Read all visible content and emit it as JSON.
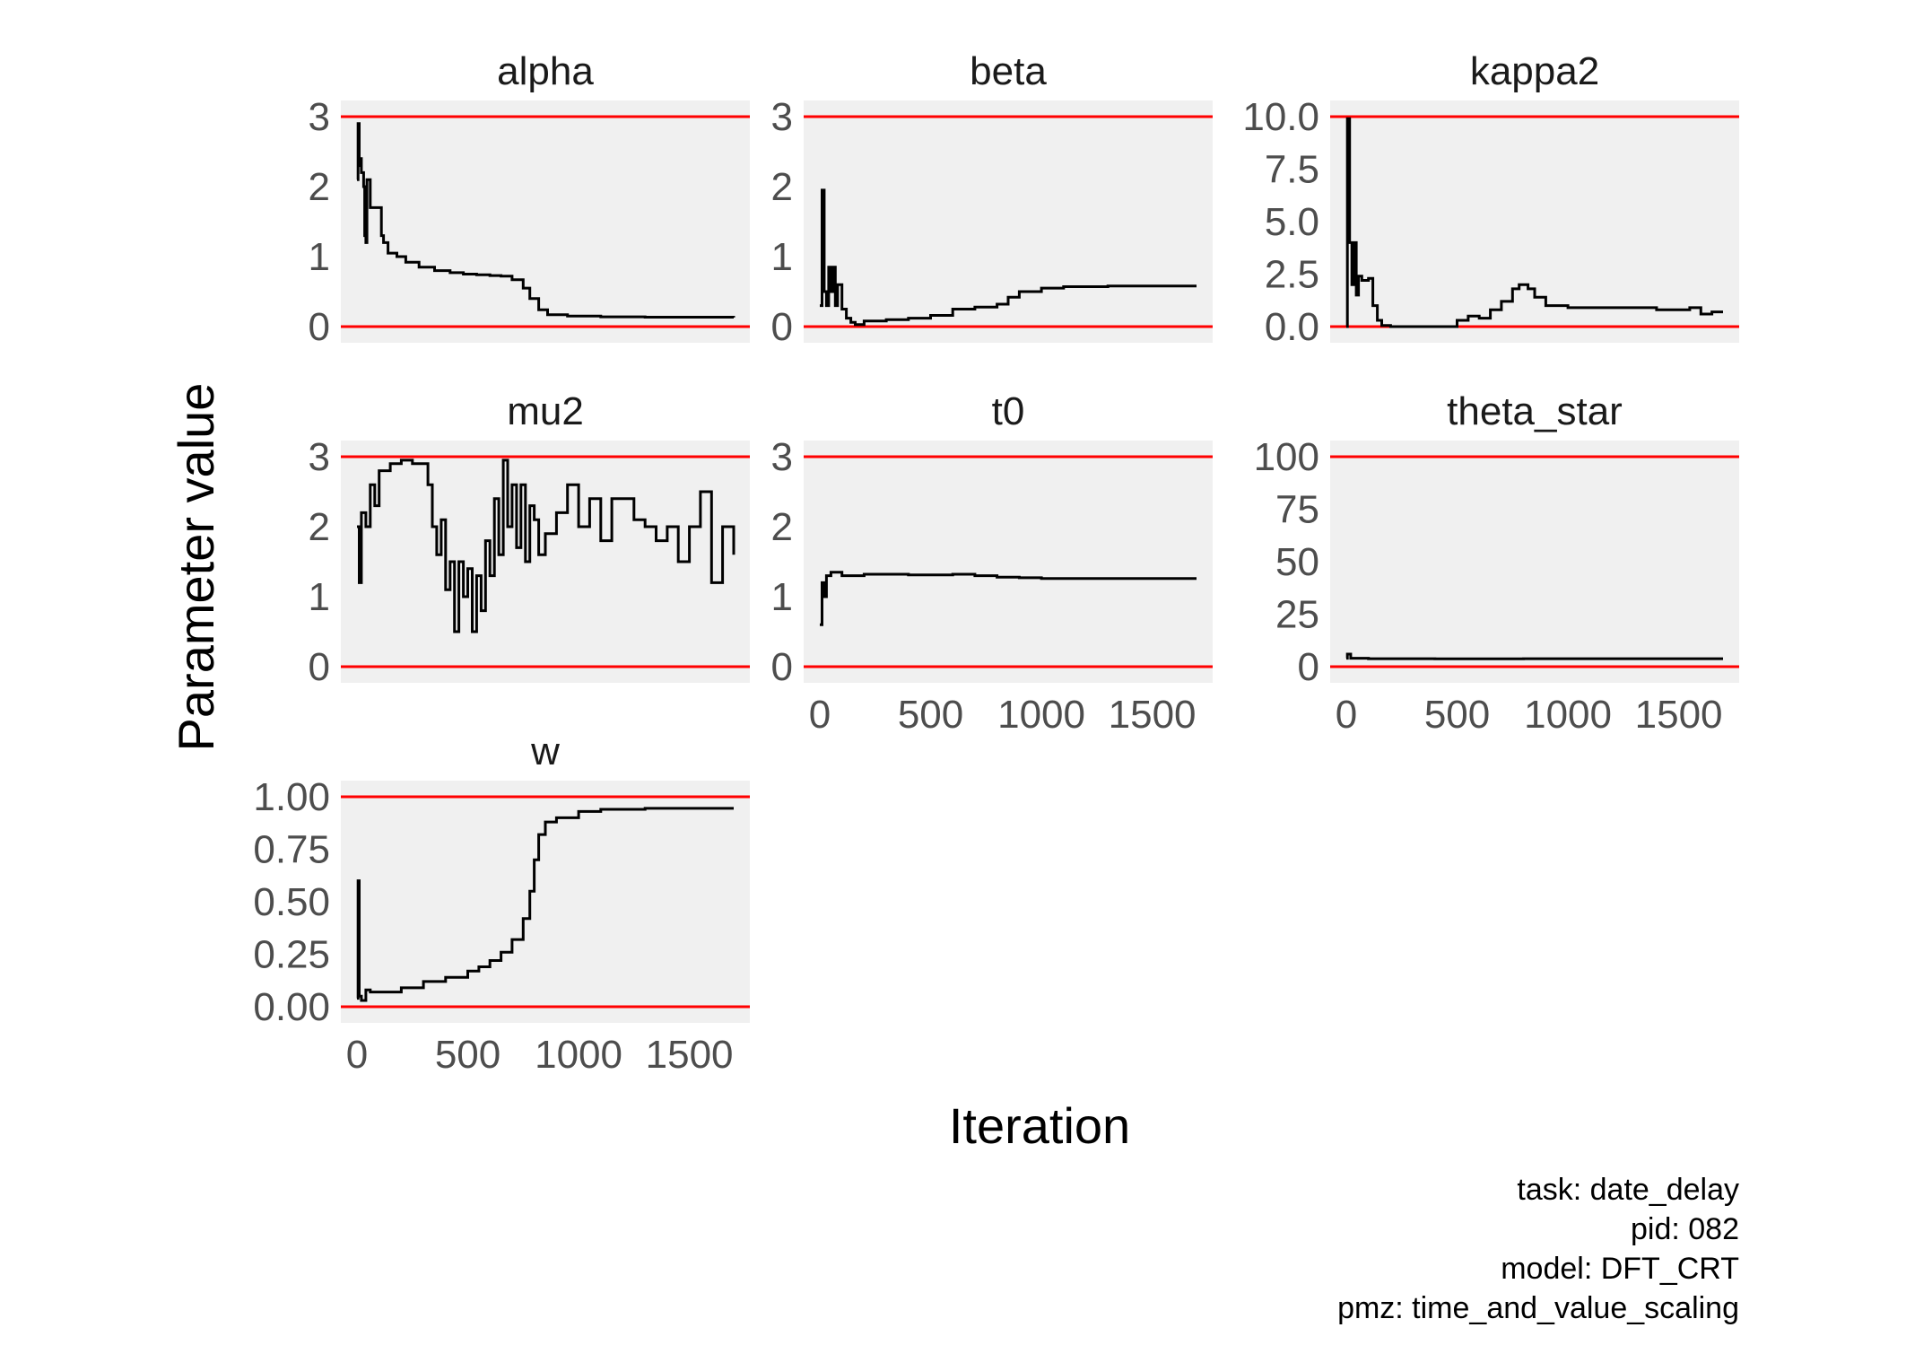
{
  "chart_data": {
    "type": "line",
    "xlabel": "Iteration",
    "ylabel": "Parameter value",
    "x_range": [
      0,
      1700
    ],
    "x_ticks": [
      "0",
      "500",
      "1000",
      "1500"
    ],
    "colors": {
      "panel_bg": "#f0f0f0",
      "trace": "#000000",
      "bound_line": "#ff0000"
    },
    "caption": [
      "task: date_delay",
      "pid: 082",
      "model: DFT_CRT",
      "pmz: time_and_value_scaling"
    ],
    "panels": [
      {
        "name": "alpha",
        "ylim": [
          0,
          3
        ],
        "yticks": [
          "0",
          "1",
          "2",
          "3"
        ],
        "bounds": [
          0,
          3
        ],
        "trace": [
          [
            0,
            2.1
          ],
          [
            5,
            2.9
          ],
          [
            10,
            2.3
          ],
          [
            15,
            2.4
          ],
          [
            20,
            2.2
          ],
          [
            30,
            2.0
          ],
          [
            35,
            1.3
          ],
          [
            40,
            1.2
          ],
          [
            45,
            2.1
          ],
          [
            55,
            2.1
          ],
          [
            60,
            1.7
          ],
          [
            100,
            1.7
          ],
          [
            110,
            1.3
          ],
          [
            120,
            1.2
          ],
          [
            140,
            1.05
          ],
          [
            180,
            1.0
          ],
          [
            220,
            0.92
          ],
          [
            280,
            0.85
          ],
          [
            350,
            0.8
          ],
          [
            420,
            0.77
          ],
          [
            480,
            0.75
          ],
          [
            540,
            0.74
          ],
          [
            600,
            0.73
          ],
          [
            650,
            0.72
          ],
          [
            700,
            0.67
          ],
          [
            750,
            0.55
          ],
          [
            780,
            0.4
          ],
          [
            820,
            0.24
          ],
          [
            860,
            0.17
          ],
          [
            950,
            0.15
          ],
          [
            1100,
            0.14
          ],
          [
            1300,
            0.135
          ],
          [
            1700,
            0.13
          ]
        ]
      },
      {
        "name": "beta",
        "ylim": [
          0,
          3
        ],
        "yticks": [
          "0",
          "1",
          "2",
          "3"
        ],
        "bounds": [
          0,
          3
        ],
        "trace": [
          [
            0,
            0.3
          ],
          [
            10,
            1.95
          ],
          [
            20,
            0.5
          ],
          [
            30,
            0.3
          ],
          [
            40,
            0.85
          ],
          [
            50,
            0.5
          ],
          [
            60,
            0.85
          ],
          [
            70,
            0.3
          ],
          [
            80,
            0.6
          ],
          [
            100,
            0.25
          ],
          [
            120,
            0.12
          ],
          [
            140,
            0.06
          ],
          [
            160,
            0.03
          ],
          [
            200,
            0.08
          ],
          [
            300,
            0.1
          ],
          [
            400,
            0.12
          ],
          [
            500,
            0.16
          ],
          [
            600,
            0.25
          ],
          [
            700,
            0.28
          ],
          [
            800,
            0.32
          ],
          [
            850,
            0.42
          ],
          [
            900,
            0.5
          ],
          [
            1000,
            0.55
          ],
          [
            1100,
            0.57
          ],
          [
            1300,
            0.58
          ],
          [
            1700,
            0.58
          ]
        ]
      },
      {
        "name": "kappa2",
        "ylim": [
          0,
          10
        ],
        "yticks": [
          "0.0",
          "2.5",
          "5.0",
          "7.5",
          "10.0"
        ],
        "bounds": [
          0,
          10
        ],
        "trace": [
          [
            0,
            0.0
          ],
          [
            5,
            9.9
          ],
          [
            15,
            4.0
          ],
          [
            25,
            2.0
          ],
          [
            35,
            4.0
          ],
          [
            45,
            1.5
          ],
          [
            55,
            2.4
          ],
          [
            70,
            2.2
          ],
          [
            100,
            2.3
          ],
          [
            120,
            1.0
          ],
          [
            140,
            0.3
          ],
          [
            160,
            0.05
          ],
          [
            200,
            0.0
          ],
          [
            400,
            0.0
          ],
          [
            500,
            0.3
          ],
          [
            550,
            0.5
          ],
          [
            600,
            0.4
          ],
          [
            650,
            0.8
          ],
          [
            700,
            1.2
          ],
          [
            750,
            1.8
          ],
          [
            780,
            2.0
          ],
          [
            820,
            1.8
          ],
          [
            850,
            1.4
          ],
          [
            900,
            1.0
          ],
          [
            1000,
            0.9
          ],
          [
            1200,
            0.9
          ],
          [
            1400,
            0.8
          ],
          [
            1550,
            0.9
          ],
          [
            1600,
            0.6
          ],
          [
            1650,
            0.7
          ],
          [
            1700,
            0.7
          ]
        ]
      },
      {
        "name": "mu2",
        "ylim": [
          0,
          3
        ],
        "yticks": [
          "0",
          "1",
          "2",
          "3"
        ],
        "bounds": [
          0,
          3
        ],
        "trace": [
          [
            0,
            2.0
          ],
          [
            10,
            1.2
          ],
          [
            20,
            2.2
          ],
          [
            40,
            2.0
          ],
          [
            60,
            2.6
          ],
          [
            80,
            2.3
          ],
          [
            100,
            2.8
          ],
          [
            150,
            2.9
          ],
          [
            200,
            2.95
          ],
          [
            250,
            2.9
          ],
          [
            300,
            2.9
          ],
          [
            320,
            2.6
          ],
          [
            340,
            2.0
          ],
          [
            360,
            1.6
          ],
          [
            380,
            2.1
          ],
          [
            400,
            1.1
          ],
          [
            420,
            1.5
          ],
          [
            440,
            0.5
          ],
          [
            460,
            1.5
          ],
          [
            480,
            1.0
          ],
          [
            500,
            1.4
          ],
          [
            520,
            0.5
          ],
          [
            540,
            1.3
          ],
          [
            560,
            0.8
          ],
          [
            580,
            1.8
          ],
          [
            600,
            1.3
          ],
          [
            620,
            2.4
          ],
          [
            640,
            1.6
          ],
          [
            660,
            2.95
          ],
          [
            680,
            2.0
          ],
          [
            700,
            2.6
          ],
          [
            720,
            1.7
          ],
          [
            740,
            2.6
          ],
          [
            760,
            1.5
          ],
          [
            780,
            2.3
          ],
          [
            800,
            2.1
          ],
          [
            820,
            1.6
          ],
          [
            850,
            1.9
          ],
          [
            900,
            2.2
          ],
          [
            950,
            2.6
          ],
          [
            1000,
            2.0
          ],
          [
            1050,
            2.4
          ],
          [
            1100,
            1.8
          ],
          [
            1150,
            2.4
          ],
          [
            1200,
            2.4
          ],
          [
            1250,
            2.1
          ],
          [
            1300,
            2.0
          ],
          [
            1350,
            1.8
          ],
          [
            1400,
            2.0
          ],
          [
            1450,
            1.5
          ],
          [
            1500,
            2.0
          ],
          [
            1550,
            2.5
          ],
          [
            1600,
            1.2
          ],
          [
            1650,
            2.0
          ],
          [
            1700,
            1.6
          ]
        ]
      },
      {
        "name": "t0",
        "ylim": [
          0,
          3
        ],
        "yticks": [
          "0",
          "1",
          "2",
          "3"
        ],
        "bounds": [
          0,
          3
        ],
        "trace": [
          [
            0,
            0.6
          ],
          [
            10,
            1.2
          ],
          [
            20,
            1.0
          ],
          [
            30,
            1.3
          ],
          [
            50,
            1.35
          ],
          [
            100,
            1.3
          ],
          [
            200,
            1.32
          ],
          [
            400,
            1.31
          ],
          [
            600,
            1.32
          ],
          [
            700,
            1.3
          ],
          [
            800,
            1.28
          ],
          [
            900,
            1.27
          ],
          [
            1000,
            1.26
          ],
          [
            1200,
            1.26
          ],
          [
            1700,
            1.26
          ]
        ]
      },
      {
        "name": "theta_star",
        "ylim": [
          0,
          100
        ],
        "yticks": [
          "0",
          "25",
          "50",
          "75",
          "100"
        ],
        "bounds": [
          0,
          100
        ],
        "trace": [
          [
            0,
            4.0
          ],
          [
            5,
            6.0
          ],
          [
            20,
            4.0
          ],
          [
            100,
            3.8
          ],
          [
            400,
            3.7
          ],
          [
            800,
            3.8
          ],
          [
            1200,
            3.8
          ],
          [
            1700,
            3.8
          ]
        ]
      },
      {
        "name": "w",
        "ylim": [
          0,
          1
        ],
        "yticks": [
          "0.00",
          "0.25",
          "0.50",
          "0.75",
          "1.00"
        ],
        "bounds": [
          0,
          1
        ],
        "trace": [
          [
            0,
            0.04
          ],
          [
            5,
            0.6
          ],
          [
            10,
            0.05
          ],
          [
            20,
            0.03
          ],
          [
            40,
            0.08
          ],
          [
            60,
            0.07
          ],
          [
            100,
            0.07
          ],
          [
            200,
            0.09
          ],
          [
            300,
            0.12
          ],
          [
            400,
            0.14
          ],
          [
            500,
            0.17
          ],
          [
            550,
            0.19
          ],
          [
            600,
            0.22
          ],
          [
            650,
            0.26
          ],
          [
            700,
            0.32
          ],
          [
            750,
            0.42
          ],
          [
            780,
            0.55
          ],
          [
            800,
            0.7
          ],
          [
            820,
            0.82
          ],
          [
            850,
            0.88
          ],
          [
            900,
            0.9
          ],
          [
            1000,
            0.93
          ],
          [
            1100,
            0.94
          ],
          [
            1300,
            0.945
          ],
          [
            1700,
            0.945
          ]
        ]
      }
    ]
  }
}
